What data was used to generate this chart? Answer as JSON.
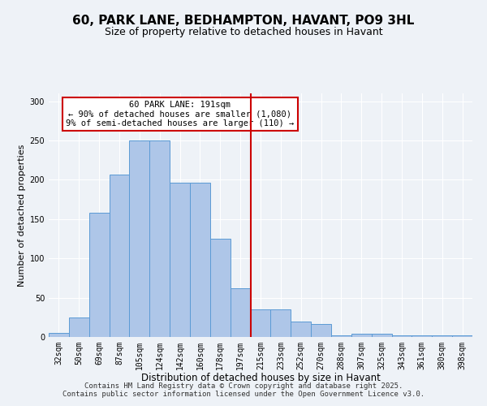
{
  "title": "60, PARK LANE, BEDHAMPTON, HAVANT, PO9 3HL",
  "subtitle": "Size of property relative to detached houses in Havant",
  "xlabel": "Distribution of detached houses by size in Havant",
  "ylabel": "Number of detached properties",
  "categories": [
    "32sqm",
    "50sqm",
    "69sqm",
    "87sqm",
    "105sqm",
    "124sqm",
    "142sqm",
    "160sqm",
    "178sqm",
    "197sqm",
    "215sqm",
    "233sqm",
    "252sqm",
    "270sqm",
    "288sqm",
    "307sqm",
    "325sqm",
    "343sqm",
    "361sqm",
    "380sqm",
    "398sqm"
  ],
  "values": [
    5,
    25,
    158,
    207,
    250,
    250,
    196,
    196,
    125,
    62,
    35,
    35,
    20,
    17,
    2,
    4,
    4,
    2,
    2,
    2,
    2
  ],
  "bar_color": "#aec6e8",
  "bar_edge_color": "#5b9bd5",
  "bg_color": "#eef2f7",
  "grid_color": "#ffffff",
  "vline_x": 9.5,
  "vline_color": "#cc0000",
  "annotation_text": "60 PARK LANE: 191sqm\n← 90% of detached houses are smaller (1,080)\n9% of semi-detached houses are larger (110) →",
  "annotation_box_color": "#ffffff",
  "annotation_box_edge": "#cc0000",
  "footer": "Contains HM Land Registry data © Crown copyright and database right 2025.\nContains public sector information licensed under the Open Government Licence v3.0.",
  "ylim": [
    0,
    310
  ],
  "title_fontsize": 11,
  "subtitle_fontsize": 9,
  "xlabel_fontsize": 8.5,
  "ylabel_fontsize": 8,
  "tick_fontsize": 7,
  "footer_fontsize": 6.5,
  "annot_fontsize": 7.5
}
